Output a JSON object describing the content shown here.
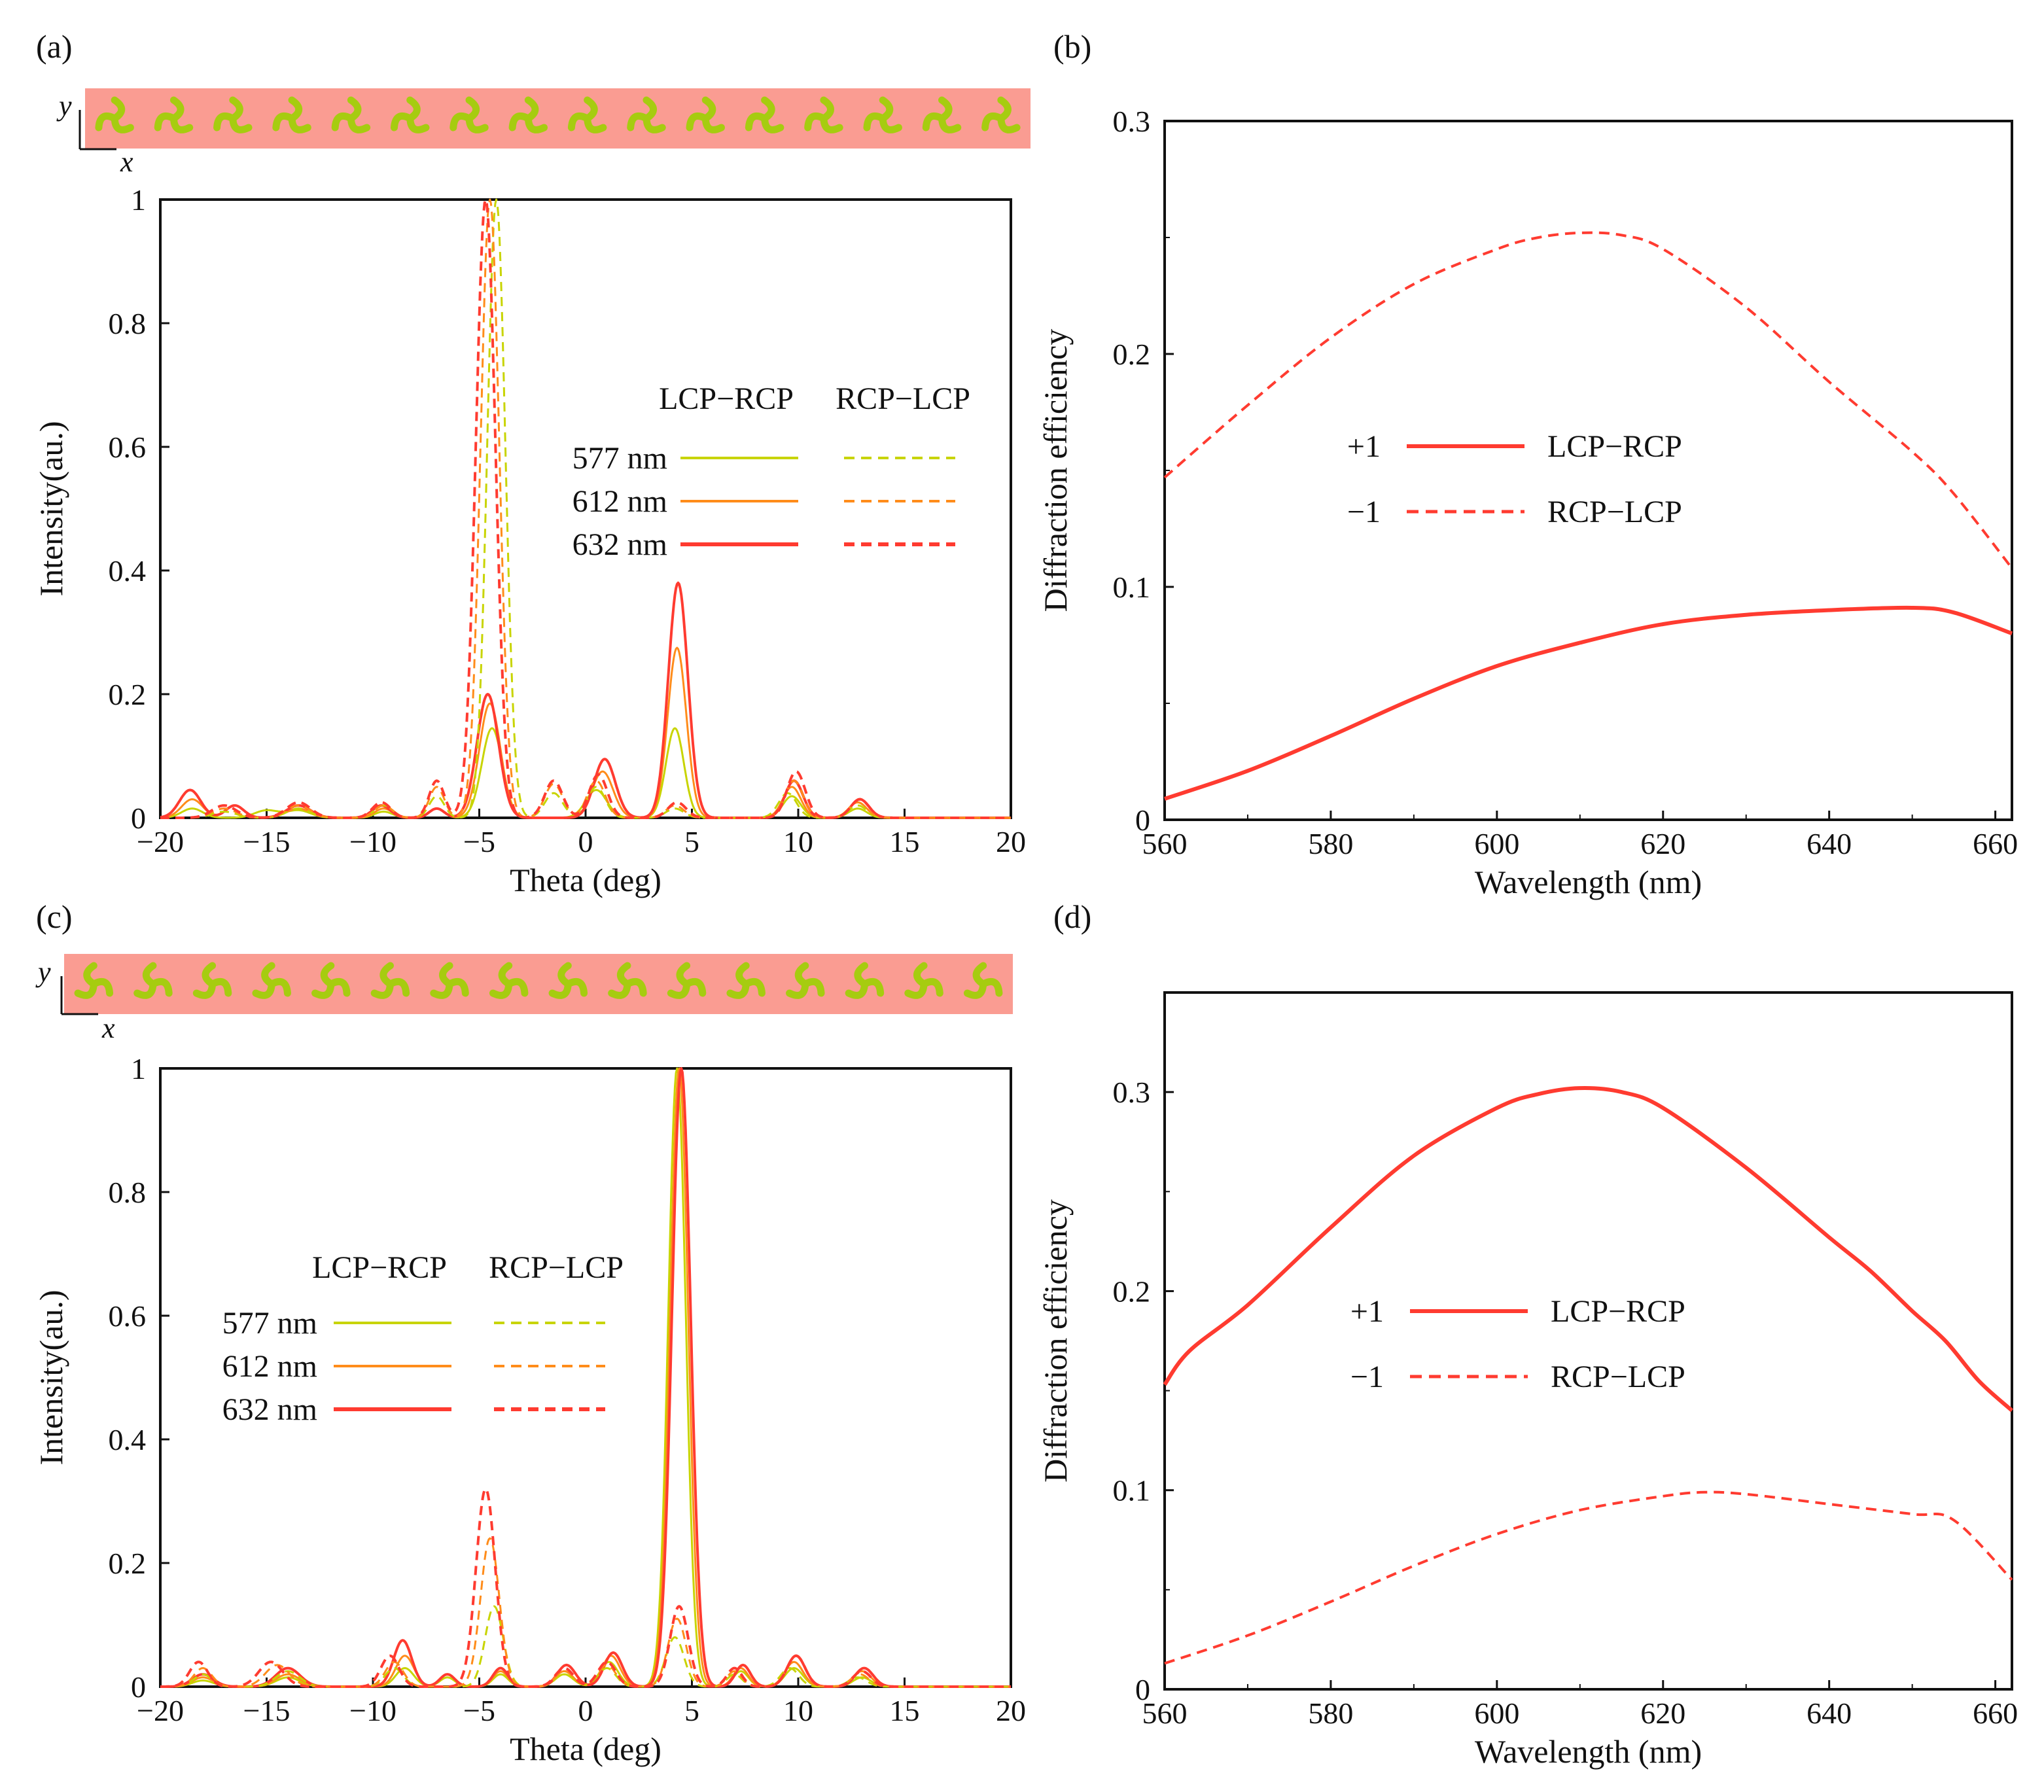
{
  "colors": {
    "c577": "#c8d400",
    "c612": "#ff8c1a",
    "c632": "#ff3b30",
    "strip_bg": "#fa9c92",
    "strip_pattern": "#a6cc10",
    "axis": "#111111"
  },
  "panels": {
    "a": {
      "label": "(a)",
      "strip": {
        "x_label": "x",
        "y_label": "y",
        "motif_count": 16,
        "motif_orientation": "left"
      }
    },
    "b": {
      "label": "(b)"
    },
    "c": {
      "label": "(c)",
      "strip": {
        "x_label": "x",
        "y_label": "y",
        "motif_count": 16,
        "motif_orientation": "right"
      }
    },
    "d": {
      "label": "(d)"
    }
  },
  "chart_data": [
    {
      "id": "a",
      "type": "line",
      "xlabel": "Theta (deg)",
      "ylabel": "Intensity(au.)",
      "xlim": [
        -20,
        20
      ],
      "ylim": [
        0,
        1
      ],
      "xticks": [
        -20,
        -15,
        -10,
        -5,
        0,
        5,
        10,
        15,
        20
      ],
      "yticks": [
        0,
        0.2,
        0.4,
        0.6,
        0.8,
        1
      ],
      "xtick_labels": [
        "−20",
        "−15",
        "−10",
        "−5",
        "0",
        "5",
        "10",
        "15",
        "20"
      ],
      "ytick_labels": [
        "0",
        "0.2",
        "0.4",
        "0.6",
        "0.8",
        "1"
      ],
      "legend": {
        "headers": [
          "LCP−RCP",
          "RCP−LCP"
        ],
        "rows": [
          {
            "label": "577 nm",
            "color": "c577"
          },
          {
            "label": "612 nm",
            "color": "c612"
          },
          {
            "label": "632 nm",
            "color": "c632"
          }
        ]
      },
      "series": [
        {
          "name": "577 nm LCP−RCP",
          "color": "c577",
          "dash": false,
          "peaks": [
            [
              -18.5,
              0.015,
              0.7
            ],
            [
              -15,
              0.012,
              0.8
            ],
            [
              -13.5,
              0.012,
              0.8
            ],
            [
              -9.5,
              0.01,
              0.6
            ],
            [
              -7,
              0.015,
              0.5
            ],
            [
              -4.4,
              0.145,
              0.68
            ],
            [
              0.5,
              0.045,
              0.7
            ],
            [
              4.2,
              0.145,
              0.6
            ],
            [
              9.7,
              0.035,
              0.6
            ],
            [
              12.8,
              0.015,
              0.6
            ]
          ]
        },
        {
          "name": "612 nm LCP−RCP",
          "color": "c612",
          "dash": false,
          "peaks": [
            [
              -18.5,
              0.03,
              0.7
            ],
            [
              -16.5,
              0.02,
              0.6
            ],
            [
              -13.5,
              0.015,
              0.8
            ],
            [
              -9.5,
              0.015,
              0.6
            ],
            [
              -7,
              0.015,
              0.5
            ],
            [
              -4.5,
              0.185,
              0.7
            ],
            [
              0.8,
              0.075,
              0.7
            ],
            [
              4.3,
              0.275,
              0.62
            ],
            [
              9.7,
              0.05,
              0.6
            ],
            [
              12.8,
              0.025,
              0.6
            ]
          ]
        },
        {
          "name": "632 nm LCP−RCP",
          "color": "c632",
          "dash": false,
          "peaks": [
            [
              -18.6,
              0.045,
              0.7
            ],
            [
              -16.5,
              0.02,
              0.6
            ],
            [
              -13.5,
              0.02,
              0.8
            ],
            [
              -9.6,
              0.02,
              0.6
            ],
            [
              -7,
              0.015,
              0.5
            ],
            [
              -4.6,
              0.2,
              0.72
            ],
            [
              0.9,
              0.095,
              0.7
            ],
            [
              4.35,
              0.38,
              0.65
            ],
            [
              9.8,
              0.06,
              0.6
            ],
            [
              12.9,
              0.03,
              0.6
            ]
          ]
        },
        {
          "name": "577 nm RCP−LCP",
          "color": "c577",
          "dash": true,
          "peaks": [
            [
              -17,
              0.01,
              0.8
            ],
            [
              -13.5,
              0.015,
              0.8
            ],
            [
              -9.5,
              0.02,
              0.6
            ],
            [
              -7,
              0.035,
              0.5
            ],
            [
              -4.2,
              1.0,
              0.6
            ],
            [
              -1.5,
              0.04,
              0.6
            ],
            [
              0.5,
              0.05,
              0.6
            ],
            [
              4.2,
              0.015,
              0.6
            ],
            [
              9.5,
              0.04,
              0.6
            ],
            [
              12.8,
              0.02,
              0.6
            ]
          ]
        },
        {
          "name": "612 nm RCP−LCP",
          "color": "c612",
          "dash": true,
          "peaks": [
            [
              -17,
              0.015,
              0.8
            ],
            [
              -13.5,
              0.02,
              0.8
            ],
            [
              -9.5,
              0.02,
              0.6
            ],
            [
              -7,
              0.05,
              0.5
            ],
            [
              -4.5,
              1.0,
              0.62
            ],
            [
              -1.5,
              0.055,
              0.6
            ],
            [
              0.5,
              0.06,
              0.6
            ],
            [
              4.2,
              0.02,
              0.6
            ],
            [
              9.8,
              0.06,
              0.6
            ],
            [
              12.8,
              0.025,
              0.6
            ]
          ]
        },
        {
          "name": "632 nm RCP−LCP",
          "color": "c632",
          "dash": true,
          "peaks": [
            [
              -17,
              0.02,
              0.8
            ],
            [
              -13.5,
              0.025,
              0.8
            ],
            [
              -9.6,
              0.025,
              0.6
            ],
            [
              -7,
              0.06,
              0.5
            ],
            [
              -4.7,
              1.0,
              0.65
            ],
            [
              -1.5,
              0.06,
              0.6
            ],
            [
              0.6,
              0.07,
              0.6
            ],
            [
              4.3,
              0.025,
              0.6
            ],
            [
              9.9,
              0.075,
              0.6
            ],
            [
              12.9,
              0.03,
              0.6
            ]
          ]
        }
      ]
    },
    {
      "id": "b",
      "type": "line",
      "xlabel": "Wavelength (nm)",
      "ylabel": "Diffraction efficiency",
      "xlim": [
        560,
        662
      ],
      "ylim": [
        0,
        0.3
      ],
      "xticks": [
        560,
        580,
        600,
        620,
        640,
        660
      ],
      "yticks": [
        0,
        0.1,
        0.2,
        0.3
      ],
      "xtick_labels": [
        "560",
        "580",
        "600",
        "620",
        "640",
        "660"
      ],
      "ytick_labels": [
        "0",
        "0.1",
        "0.2",
        "0.3"
      ],
      "legend": {
        "rows": [
          {
            "order": "+1",
            "label": "LCP−RCP",
            "dash": false
          },
          {
            "order": "−1",
            "label": "RCP−LCP",
            "dash": true
          }
        ]
      },
      "series": [
        {
          "name": "+1 LCP−RCP",
          "color": "c632",
          "dash": false,
          "x": [
            560,
            570,
            580,
            590,
            600,
            610,
            620,
            630,
            640,
            650,
            655,
            662
          ],
          "y": [
            0.009,
            0.021,
            0.036,
            0.052,
            0.066,
            0.076,
            0.084,
            0.088,
            0.09,
            0.091,
            0.089,
            0.08
          ]
        },
        {
          "name": "−1 RCP−LCP",
          "color": "c632",
          "dash": true,
          "x": [
            560,
            570,
            580,
            590,
            600,
            605,
            610,
            615,
            620,
            630,
            640,
            650,
            655,
            662
          ],
          "y": [
            0.147,
            0.178,
            0.207,
            0.23,
            0.245,
            0.25,
            0.252,
            0.251,
            0.245,
            0.22,
            0.188,
            0.158,
            0.14,
            0.108
          ]
        }
      ]
    },
    {
      "id": "c",
      "type": "line",
      "xlabel": "Theta (deg)",
      "ylabel": "Intensity(au.)",
      "xlim": [
        -20,
        20
      ],
      "ylim": [
        0,
        1
      ],
      "xticks": [
        -20,
        -15,
        -10,
        -5,
        0,
        5,
        10,
        15,
        20
      ],
      "yticks": [
        0,
        0.2,
        0.4,
        0.6,
        0.8,
        1
      ],
      "xtick_labels": [
        "−20",
        "−15",
        "−10",
        "−5",
        "0",
        "5",
        "10",
        "15",
        "20"
      ],
      "ytick_labels": [
        "0",
        "0.2",
        "0.4",
        "0.6",
        "0.8",
        "1"
      ],
      "legend": {
        "headers": [
          "LCP−RCP",
          "RCP−LCP"
        ],
        "rows": [
          {
            "label": "577 nm",
            "color": "c577"
          },
          {
            "label": "612 nm",
            "color": "c612"
          },
          {
            "label": "632 nm",
            "color": "c632"
          }
        ]
      },
      "series": [
        {
          "name": "577 nm LCP−RCP",
          "color": "c577",
          "dash": false,
          "peaks": [
            [
              -18,
              0.01,
              0.7
            ],
            [
              -14,
              0.015,
              0.8
            ],
            [
              -8.5,
              0.03,
              0.6
            ],
            [
              -6.5,
              0.015,
              0.5
            ],
            [
              -4,
              0.02,
              0.5
            ],
            [
              -1,
              0.02,
              0.6
            ],
            [
              1.1,
              0.04,
              0.6
            ],
            [
              4.3,
              1.0,
              0.58
            ],
            [
              7.3,
              0.025,
              0.5
            ],
            [
              9.8,
              0.03,
              0.6
            ],
            [
              13,
              0.015,
              0.6
            ]
          ]
        },
        {
          "name": "612 nm LCP−RCP",
          "color": "c612",
          "dash": false,
          "peaks": [
            [
              -18,
              0.015,
              0.7
            ],
            [
              -14,
              0.02,
              0.8
            ],
            [
              -8.5,
              0.05,
              0.6
            ],
            [
              -6.5,
              0.02,
              0.5
            ],
            [
              -4,
              0.025,
              0.5
            ],
            [
              -1,
              0.025,
              0.6
            ],
            [
              1.2,
              0.05,
              0.6
            ],
            [
              4.4,
              1.0,
              0.6
            ],
            [
              7.3,
              0.03,
              0.5
            ],
            [
              9.8,
              0.04,
              0.6
            ],
            [
              13,
              0.025,
              0.6
            ]
          ]
        },
        {
          "name": "632 nm LCP−RCP",
          "color": "c632",
          "dash": false,
          "peaks": [
            [
              -18,
              0.02,
              0.7
            ],
            [
              -14,
              0.03,
              0.8
            ],
            [
              -8.6,
              0.075,
              0.6
            ],
            [
              -6.5,
              0.02,
              0.5
            ],
            [
              -4,
              0.03,
              0.5
            ],
            [
              -0.9,
              0.035,
              0.6
            ],
            [
              1.3,
              0.055,
              0.6
            ],
            [
              4.5,
              1.0,
              0.62
            ],
            [
              7.4,
              0.035,
              0.5
            ],
            [
              9.9,
              0.05,
              0.6
            ],
            [
              13.1,
              0.03,
              0.6
            ]
          ]
        },
        {
          "name": "577 nm RCP−LCP",
          "color": "c577",
          "dash": true,
          "peaks": [
            [
              -18,
              0.02,
              0.6
            ],
            [
              -14,
              0.025,
              0.8
            ],
            [
              -9,
              0.03,
              0.6
            ],
            [
              -4.3,
              0.13,
              0.6
            ],
            [
              -1,
              0.02,
              0.6
            ],
            [
              1,
              0.03,
              0.6
            ],
            [
              4.2,
              0.08,
              0.6
            ],
            [
              7,
              0.02,
              0.5
            ],
            [
              9.6,
              0.03,
              0.6
            ],
            [
              12.8,
              0.015,
              0.6
            ]
          ]
        },
        {
          "name": "612 nm RCP−LCP",
          "color": "c612",
          "dash": true,
          "peaks": [
            [
              -18,
              0.03,
              0.6
            ],
            [
              -14.5,
              0.035,
              0.8
            ],
            [
              -9,
              0.04,
              0.6
            ],
            [
              -4.5,
              0.24,
              0.62
            ],
            [
              -1,
              0.025,
              0.6
            ],
            [
              1,
              0.035,
              0.6
            ],
            [
              4.3,
              0.11,
              0.6
            ],
            [
              7,
              0.025,
              0.5
            ],
            [
              9.8,
              0.04,
              0.6
            ],
            [
              12.9,
              0.02,
              0.6
            ]
          ]
        },
        {
          "name": "632 nm RCP−LCP",
          "color": "c632",
          "dash": true,
          "peaks": [
            [
              -18.2,
              0.04,
              0.6
            ],
            [
              -14.8,
              0.04,
              0.8
            ],
            [
              -9.2,
              0.05,
              0.6
            ],
            [
              -4.7,
              0.32,
              0.64
            ],
            [
              -1,
              0.03,
              0.6
            ],
            [
              1,
              0.04,
              0.6
            ],
            [
              4.4,
              0.13,
              0.6
            ],
            [
              7,
              0.03,
              0.5
            ],
            [
              9.9,
              0.05,
              0.6
            ],
            [
              13,
              0.025,
              0.6
            ]
          ]
        }
      ]
    },
    {
      "id": "d",
      "type": "line",
      "xlabel": "Wavelength (nm)",
      "ylabel": "Diffraction efficiency",
      "xlim": [
        560,
        662
      ],
      "ylim": [
        0,
        0.35
      ],
      "xticks": [
        560,
        580,
        600,
        620,
        640,
        660
      ],
      "yticks": [
        0,
        0.1,
        0.2,
        0.3
      ],
      "xtick_labels": [
        "560",
        "580",
        "600",
        "620",
        "640",
        "660"
      ],
      "ytick_labels": [
        "0",
        "0.1",
        "0.2",
        "0.3"
      ],
      "legend": {
        "rows": [
          {
            "order": "+1",
            "label": "LCP−RCP",
            "dash": false
          },
          {
            "order": "−1",
            "label": "RCP−LCP",
            "dash": true
          }
        ]
      },
      "series": [
        {
          "name": "+1 LCP−RCP",
          "color": "c632",
          "dash": false,
          "x": [
            560,
            563,
            570,
            580,
            590,
            600,
            605,
            610,
            615,
            620,
            630,
            640,
            645,
            650,
            654,
            658,
            662
          ],
          "y": [
            0.153,
            0.17,
            0.193,
            0.232,
            0.268,
            0.292,
            0.299,
            0.302,
            0.3,
            0.292,
            0.262,
            0.227,
            0.21,
            0.19,
            0.175,
            0.155,
            0.14
          ]
        },
        {
          "name": "−1 RCP−LCP",
          "color": "c632",
          "dash": true,
          "x": [
            560,
            570,
            580,
            590,
            600,
            610,
            620,
            625,
            630,
            640,
            650,
            655,
            662
          ],
          "y": [
            0.013,
            0.027,
            0.044,
            0.062,
            0.078,
            0.09,
            0.097,
            0.099,
            0.098,
            0.093,
            0.088,
            0.085,
            0.055
          ]
        }
      ]
    }
  ]
}
